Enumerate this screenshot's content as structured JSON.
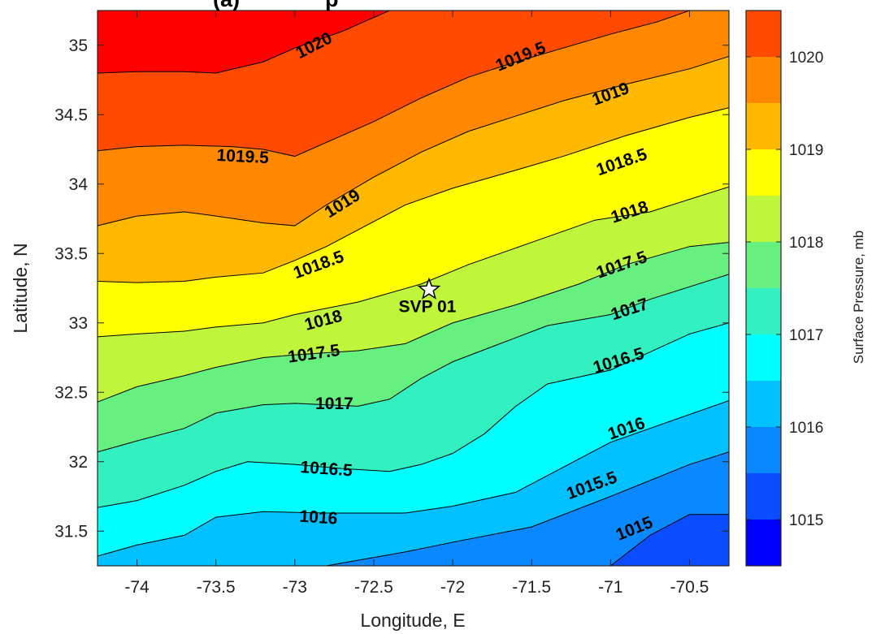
{
  "chart_data": {
    "type": "contour",
    "title": "(a)              p",
    "xlabel": "Longitude, E",
    "ylabel": "Latitude, N",
    "colorbar_label": "Surface Pressure, mb",
    "xlim": [
      -74.25,
      -70.25
    ],
    "ylim": [
      31.25,
      35.25
    ],
    "xticks": [
      "-74",
      "-73.5",
      "-73",
      "-72.5",
      "-72",
      "-71.5",
      "-71",
      "-70.5"
    ],
    "xtick_values": [
      -74,
      -73.5,
      -73,
      -72.5,
      -72,
      -71.5,
      -71,
      -70.5
    ],
    "yticks": [
      "31.5",
      "32",
      "32.5",
      "33",
      "33.5",
      "34",
      "34.5",
      "35"
    ],
    "ytick_values": [
      31.5,
      32,
      32.5,
      33,
      33.5,
      34,
      34.5,
      35
    ],
    "colorbar_range": [
      1014.5,
      1020.5
    ],
    "colorbar_ticks": [
      "1015",
      "1016",
      "1017",
      "1018",
      "1019",
      "1020"
    ],
    "colorbar_tick_values": [
      1015,
      1016,
      1017,
      1018,
      1019,
      1020
    ],
    "levels": [
      1014.5,
      1015,
      1015.5,
      1016,
      1016.5,
      1017,
      1017.5,
      1018,
      1018.5,
      1019,
      1019.5,
      1020,
      1020.5
    ],
    "level_colors": [
      "#0000FF",
      "#0A4CFF",
      "#0A88FF",
      "#00C0FF",
      "#00FFFF",
      "#33F0C0",
      "#66F080",
      "#BFF53A",
      "#FFFF00",
      "#FFB800",
      "#FF8800",
      "#FF4A00",
      "#FF0000"
    ],
    "isolines": [
      {
        "level": 1015,
        "points": [
          [
            -74.25,
            31.25
          ],
          [
            -74.25,
            31.25
          ],
          [
            -71.0,
            31.25
          ],
          [
            -70.75,
            31.47
          ],
          [
            -70.5,
            31.62
          ],
          [
            -70.25,
            31.62
          ]
        ]
      },
      {
        "level": 1015.5,
        "points": [
          [
            -72.8,
            31.25
          ],
          [
            -72.3,
            31.35
          ],
          [
            -72.0,
            31.42
          ],
          [
            -71.5,
            31.53
          ],
          [
            -71.0,
            31.75
          ],
          [
            -70.5,
            31.98
          ],
          [
            -70.25,
            32.07
          ]
        ]
      },
      {
        "level": 1016,
        "points": [
          [
            -74.25,
            31.32
          ],
          [
            -74.0,
            31.4
          ],
          [
            -73.7,
            31.47
          ],
          [
            -73.5,
            31.6
          ],
          [
            -73.2,
            31.64
          ],
          [
            -72.8,
            31.63
          ],
          [
            -72.3,
            31.63
          ],
          [
            -72.0,
            31.68
          ],
          [
            -71.6,
            31.78
          ],
          [
            -71.3,
            31.96
          ],
          [
            -71.0,
            32.14
          ],
          [
            -70.75,
            32.24
          ],
          [
            -70.25,
            32.44
          ]
        ]
      },
      {
        "level": 1016.5,
        "points": [
          [
            -74.25,
            31.67
          ],
          [
            -74.0,
            31.72
          ],
          [
            -73.7,
            31.83
          ],
          [
            -73.5,
            31.93
          ],
          [
            -73.3,
            32.0
          ],
          [
            -73.0,
            31.98
          ],
          [
            -72.7,
            31.95
          ],
          [
            -72.4,
            31.93
          ],
          [
            -72.2,
            31.98
          ],
          [
            -72.0,
            32.06
          ],
          [
            -71.8,
            32.2
          ],
          [
            -71.6,
            32.4
          ],
          [
            -71.4,
            32.56
          ],
          [
            -71.0,
            32.66
          ],
          [
            -70.5,
            32.92
          ],
          [
            -70.25,
            33.0
          ]
        ]
      },
      {
        "level": 1017,
        "points": [
          [
            -74.25,
            32.07
          ],
          [
            -74.0,
            32.15
          ],
          [
            -73.7,
            32.24
          ],
          [
            -73.5,
            32.35
          ],
          [
            -73.2,
            32.41
          ],
          [
            -73.0,
            32.42
          ],
          [
            -72.6,
            32.4
          ],
          [
            -72.4,
            32.45
          ],
          [
            -72.2,
            32.6
          ],
          [
            -72.0,
            32.72
          ],
          [
            -71.7,
            32.85
          ],
          [
            -71.4,
            32.98
          ],
          [
            -71.0,
            33.06
          ],
          [
            -70.75,
            33.17
          ],
          [
            -70.25,
            33.35
          ]
        ]
      },
      {
        "level": 1017.5,
        "points": [
          [
            -74.25,
            32.43
          ],
          [
            -74.0,
            32.54
          ],
          [
            -73.7,
            32.62
          ],
          [
            -73.5,
            32.68
          ],
          [
            -73.2,
            32.75
          ],
          [
            -73.0,
            32.77
          ],
          [
            -72.6,
            32.8
          ],
          [
            -72.3,
            32.85
          ],
          [
            -72.0,
            33.0
          ],
          [
            -71.6,
            33.13
          ],
          [
            -71.2,
            33.28
          ],
          [
            -70.9,
            33.42
          ],
          [
            -70.5,
            33.55
          ],
          [
            -70.25,
            33.58
          ]
        ]
      },
      {
        "level": 1018,
        "points": [
          [
            -74.25,
            32.9
          ],
          [
            -74.0,
            32.92
          ],
          [
            -73.7,
            32.94
          ],
          [
            -73.5,
            32.97
          ],
          [
            -73.2,
            33.0
          ],
          [
            -73.0,
            33.06
          ],
          [
            -72.6,
            33.15
          ],
          [
            -72.2,
            33.28
          ],
          [
            -71.9,
            33.42
          ],
          [
            -71.5,
            33.58
          ],
          [
            -71.1,
            33.74
          ],
          [
            -70.75,
            33.8
          ],
          [
            -70.25,
            33.98
          ]
        ]
      },
      {
        "level": 1018.5,
        "points": [
          [
            -74.25,
            33.3
          ],
          [
            -74.0,
            33.29
          ],
          [
            -73.7,
            33.3
          ],
          [
            -73.5,
            33.33
          ],
          [
            -73.2,
            33.36
          ],
          [
            -73.0,
            33.45
          ],
          [
            -72.8,
            33.55
          ],
          [
            -72.5,
            33.73
          ],
          [
            -72.3,
            33.85
          ],
          [
            -72.0,
            33.97
          ],
          [
            -71.6,
            34.1
          ],
          [
            -71.3,
            34.2
          ],
          [
            -70.9,
            34.35
          ],
          [
            -70.5,
            34.48
          ],
          [
            -70.25,
            34.55
          ]
        ]
      },
      {
        "level": 1019,
        "points": [
          [
            -74.25,
            33.7
          ],
          [
            -74.0,
            33.77
          ],
          [
            -73.7,
            33.8
          ],
          [
            -73.5,
            33.77
          ],
          [
            -73.2,
            33.72
          ],
          [
            -73.0,
            33.7
          ],
          [
            -72.8,
            33.85
          ],
          [
            -72.5,
            34.05
          ],
          [
            -72.2,
            34.23
          ],
          [
            -71.9,
            34.38
          ],
          [
            -71.6,
            34.49
          ],
          [
            -71.3,
            34.6
          ],
          [
            -70.9,
            34.72
          ],
          [
            -70.5,
            34.83
          ],
          [
            -70.25,
            34.92
          ]
        ]
      },
      {
        "level": 1019.5,
        "points": [
          [
            -74.25,
            34.24
          ],
          [
            -74.0,
            34.27
          ],
          [
            -73.7,
            34.28
          ],
          [
            -73.4,
            34.27
          ],
          [
            -73.2,
            34.25
          ],
          [
            -73.0,
            34.2
          ],
          [
            -72.8,
            34.3
          ],
          [
            -72.5,
            34.45
          ],
          [
            -72.2,
            34.62
          ],
          [
            -71.9,
            34.77
          ],
          [
            -71.6,
            34.88
          ],
          [
            -71.3,
            34.98
          ],
          [
            -71.0,
            35.08
          ],
          [
            -70.7,
            35.17
          ],
          [
            -70.5,
            35.25
          ]
        ]
      },
      {
        "level": 1020,
        "points": [
          [
            -74.25,
            34.8
          ],
          [
            -74.0,
            34.81
          ],
          [
            -73.7,
            34.81
          ],
          [
            -73.5,
            34.8
          ],
          [
            -73.2,
            34.88
          ],
          [
            -73.0,
            34.98
          ],
          [
            -72.7,
            35.1
          ],
          [
            -72.4,
            35.25
          ]
        ]
      },
      {
        "level": 1020.5,
        "points": [
          [
            -74.25,
            35.25
          ],
          [
            -74.25,
            35.25
          ]
        ]
      }
    ],
    "contour_labels": [
      {
        "text": "1020",
        "x": -72.88,
        "y": 35.0,
        "angle": -27
      },
      {
        "text": "1019.5",
        "x": -71.57,
        "y": 34.92,
        "angle": -22
      },
      {
        "text": "1019",
        "x": -71.0,
        "y": 34.65,
        "angle": -20
      },
      {
        "text": "1019.5",
        "x": -73.33,
        "y": 34.2,
        "angle": 3
      },
      {
        "text": "1018.5",
        "x": -70.93,
        "y": 34.16,
        "angle": -19
      },
      {
        "text": "1019",
        "x": -72.7,
        "y": 33.86,
        "angle": -32
      },
      {
        "text": "1018",
        "x": -70.88,
        "y": 33.8,
        "angle": -18
      },
      {
        "text": "1018.5",
        "x": -72.85,
        "y": 33.42,
        "angle": -20
      },
      {
        "text": "1017.5",
        "x": -70.93,
        "y": 33.42,
        "angle": -19
      },
      {
        "text": "1018",
        "x": -72.82,
        "y": 33.02,
        "angle": -15
      },
      {
        "text": "1017",
        "x": -70.88,
        "y": 33.1,
        "angle": -18
      },
      {
        "text": "1017.5",
        "x": -72.88,
        "y": 32.78,
        "angle": -8
      },
      {
        "text": "1016.5",
        "x": -70.95,
        "y": 32.73,
        "angle": -17
      },
      {
        "text": "1017",
        "x": -72.75,
        "y": 32.42,
        "angle": 0
      },
      {
        "text": "1016",
        "x": -70.9,
        "y": 32.24,
        "angle": -19
      },
      {
        "text": "1016.5",
        "x": -72.8,
        "y": 31.95,
        "angle": 4
      },
      {
        "text": "1015.5",
        "x": -71.12,
        "y": 31.83,
        "angle": -20
      },
      {
        "text": "1016",
        "x": -72.85,
        "y": 31.6,
        "angle": 4
      },
      {
        "text": "1015",
        "x": -70.85,
        "y": 31.52,
        "angle": -22
      }
    ],
    "marker": {
      "label": "SVP 01",
      "x": -72.15,
      "y": 33.24,
      "symbol": "star"
    }
  }
}
